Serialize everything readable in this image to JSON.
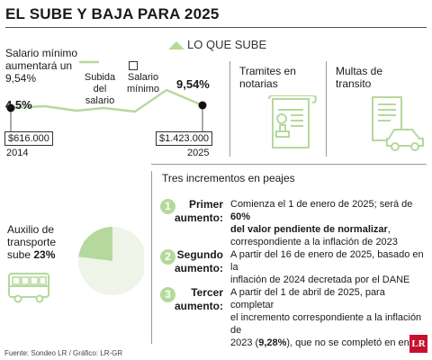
{
  "title": "EL SUBE Y BAJA PARA 2025",
  "legend": {
    "up_label": "LO QUE SUBE"
  },
  "salary": {
    "desc_line1": "Salario mínimo",
    "desc_line2": "aumentará un",
    "desc_line3": "9,54%",
    "legend_line_1": "Subida",
    "legend_line_2": "del salario",
    "legend_sq_1": "Salario",
    "legend_sq_2": "mínimo",
    "start_pct": "4,5%",
    "end_pct": "9,54%",
    "start_value": "$616.000",
    "end_value": "$1.423.000",
    "start_year": "2014",
    "end_year": "2025"
  },
  "salary_chart": {
    "type": "line",
    "x": [
      2014,
      2025
    ],
    "y": [
      4.5,
      9.54
    ]
  },
  "notaries": {
    "line1": "Tramites en",
    "line2": "notarias"
  },
  "fines": {
    "line1": "Multas de",
    "line2": "transito"
  },
  "transport": {
    "line1": "Auxilio de",
    "line2": "transporte",
    "line3_prefix": "sube ",
    "pct": "23%",
    "share": 0.23
  },
  "tolls": {
    "heading": "Tres incrementos en peajes",
    "items": [
      {
        "num": "1",
        "label_1": "Primer",
        "label_2": "aumento:",
        "t1": "Comienza el 1 de enero de 2025; será de ",
        "t1b": "60%",
        "t2b": "del valor pendiente de normalizar",
        "t2": ",",
        "t3": "correspondiente a la inflación de 2023"
      },
      {
        "num": "2",
        "label_1": "Segundo",
        "label_2": "aumento:",
        "t1": "A partir del 16 de enero de 2025, basado en la",
        "t2": "inflación de 2024 decretada por el DANE"
      },
      {
        "num": "3",
        "label_1": "Tercer",
        "label_2": "aumento:",
        "t1": "A partir del 1 de abril de 2025, para completar",
        "t2": "el incremento correspondiente a la inflación de",
        "t3a": "2023 (",
        "t3b": "9,28%",
        "t3c": "), que no se completó en enero"
      }
    ]
  },
  "footer": {
    "source": "Fuente: Sondeo LR / Gráfico: LR-GR",
    "logo": "LR"
  },
  "colors": {
    "accent": "#b5d99c",
    "pie_bg": "#eef4e8",
    "logo_red": "#c8102e"
  }
}
